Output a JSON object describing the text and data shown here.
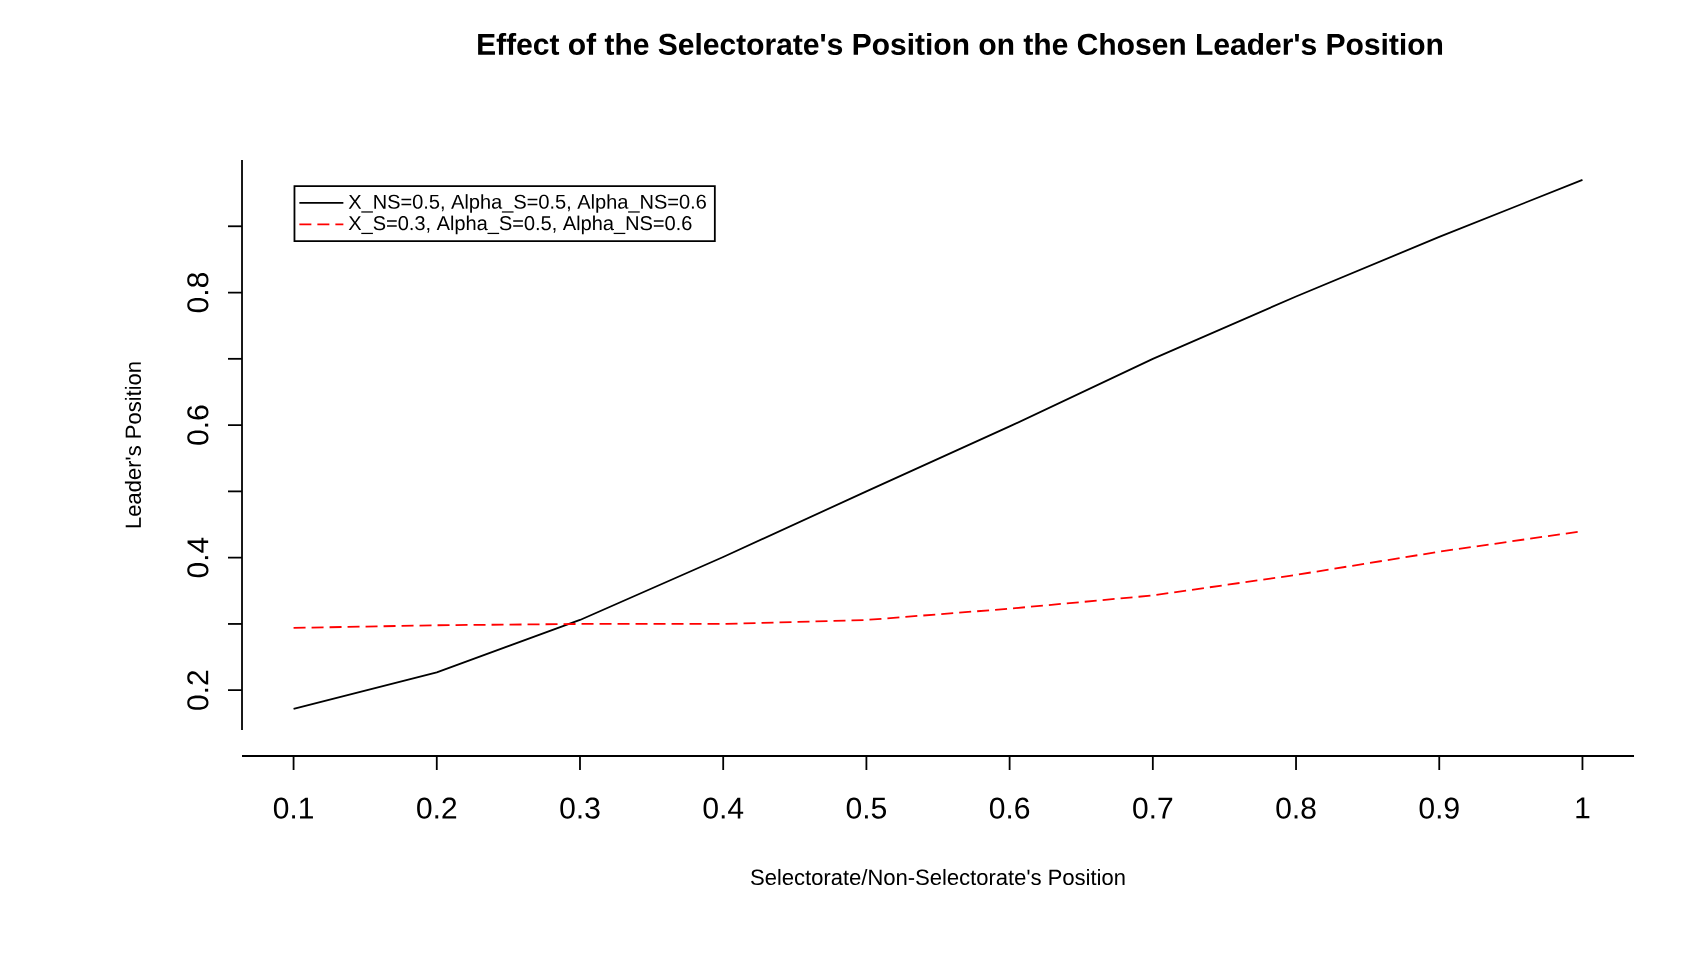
{
  "chart_data": {
    "type": "line",
    "title": "Effect of the Selectorate's Position on the Chosen Leader's Position",
    "xlabel": "Selectorate/Non-Selectorate's Position",
    "ylabel": "Leader's Position",
    "x": [
      0.1,
      0.2,
      0.3,
      0.4,
      0.5,
      0.6,
      0.7,
      0.8,
      0.9,
      1
    ],
    "series": [
      {
        "name": "X_NS=0.5, Alpha_S=0.5, Alpha_NS=0.6",
        "color": "#000000",
        "line_style": "solid",
        "values": [
          0.172,
          0.227,
          0.306,
          0.401,
          0.5,
          0.598,
          0.7,
          0.794,
          0.884,
          0.97
        ]
      },
      {
        "name": "X_S=0.3, Alpha_S=0.5, Alpha_NS=0.6",
        "color": "#ff0000",
        "line_style": "dashed",
        "values": [
          0.294,
          0.298,
          0.3,
          0.3,
          0.306,
          0.323,
          0.343,
          0.374,
          0.409,
          0.44
        ]
      }
    ],
    "xlim": [
      0.064,
      1.036
    ],
    "ylim": [
      0.14,
      1.0
    ],
    "xticks": [
      0.1,
      0.2,
      0.3,
      0.4,
      0.5,
      0.6,
      0.7,
      0.8,
      0.9,
      1
    ],
    "yticks": [
      0.2,
      {
        "value": 0.3,
        "label": null
      },
      0.4,
      {
        "value": 0.5,
        "label": null
      },
      0.6,
      {
        "value": 0.7,
        "label": null
      },
      0.8,
      {
        "value": 0.9,
        "label": null
      }
    ],
    "grid": false,
    "legend": "top left",
    "marker": "none"
  }
}
